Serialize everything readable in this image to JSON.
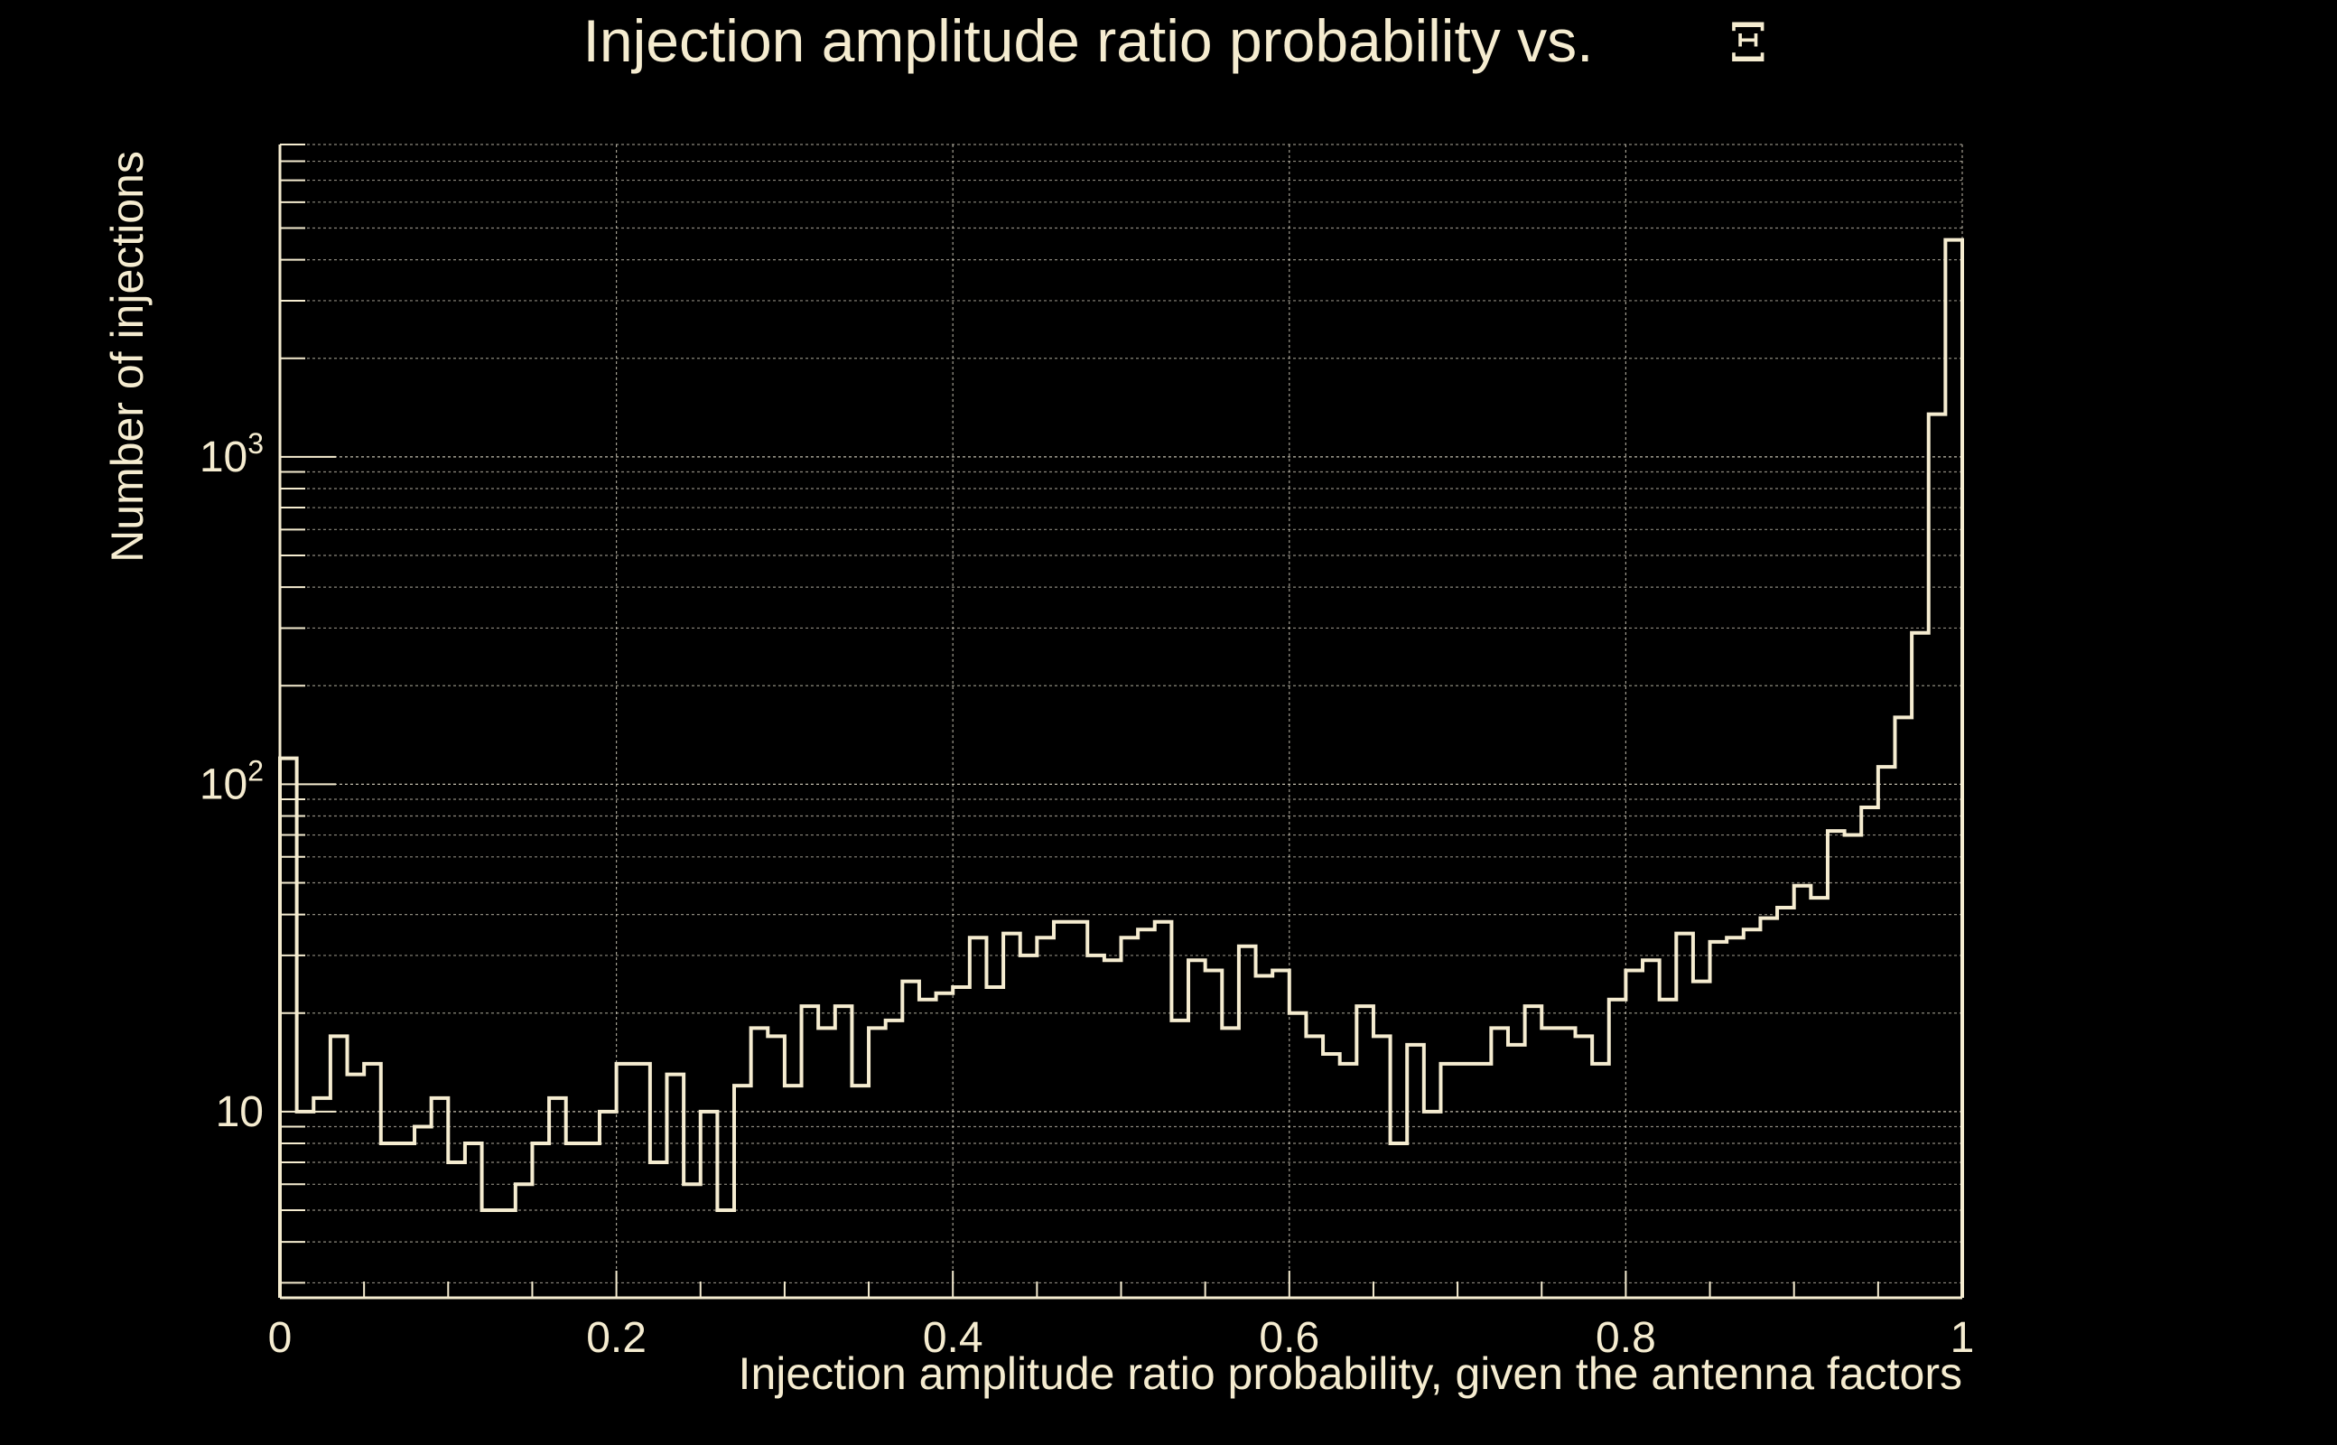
{
  "colors": {
    "background": "#000000",
    "foreground": "#f5ecd0",
    "grid": "#d8d2c0"
  },
  "chart_data": {
    "type": "bar",
    "histtype": "step",
    "title": "Injection amplitude ratio probability vs.",
    "title_symbol": "Ξ",
    "xlabel": "Injection amplitude ratio probability, given the antenna factors",
    "ylabel": "Number of injections",
    "xlim": [
      0,
      1
    ],
    "ylim": [
      2.7,
      9000
    ],
    "yscale": "log",
    "grid": true,
    "x_ticks": [
      {
        "value": 0,
        "label": "0"
      },
      {
        "value": 0.2,
        "label": "0.2"
      },
      {
        "value": 0.4,
        "label": "0.4"
      },
      {
        "value": 0.6,
        "label": "0.6"
      },
      {
        "value": 0.8,
        "label": "0.8"
      },
      {
        "value": 1,
        "label": "1"
      }
    ],
    "y_ticks": [
      {
        "value": 10,
        "base": "10",
        "exp": ""
      },
      {
        "value": 100,
        "base": "10",
        "exp": "2"
      },
      {
        "value": 1000,
        "base": "10",
        "exp": "3"
      }
    ],
    "bin_width": 0.01,
    "values": [
      120,
      10,
      11,
      17,
      13,
      14,
      8,
      8,
      9,
      11,
      7,
      8,
      5,
      5,
      6,
      8,
      11,
      8,
      8,
      10,
      14,
      14,
      7,
      13,
      6,
      10,
      5,
      12,
      18,
      17,
      12,
      21,
      18,
      21,
      12,
      18,
      19,
      25,
      22,
      23,
      24,
      34,
      24,
      35,
      30,
      34,
      38,
      38,
      30,
      29,
      34,
      36,
      38,
      19,
      29,
      27,
      18,
      32,
      26,
      27,
      20,
      17,
      15,
      14,
      21,
      17,
      8,
      16,
      10,
      14,
      14,
      14,
      18,
      16,
      21,
      18,
      18,
      17,
      14,
      22,
      27,
      29,
      22,
      35,
      25,
      33,
      34,
      36,
      39,
      42,
      49,
      45,
      72,
      70,
      85,
      113,
      160,
      290,
      1350,
      4600
    ],
    "series": [
      {
        "name": "",
        "values_ref": "values"
      }
    ]
  }
}
